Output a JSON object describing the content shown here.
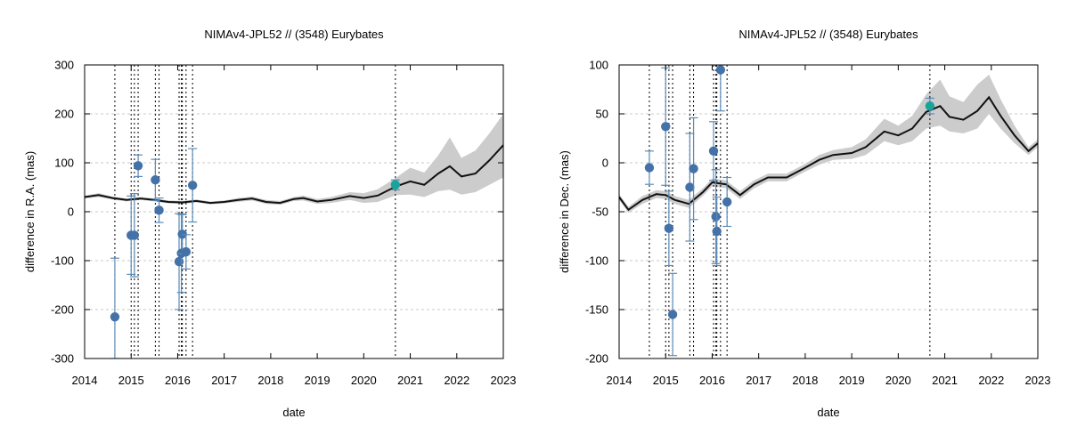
{
  "chart_data": [
    {
      "type": "line",
      "title": "NIMAv4-JPL52 // (3548) Eurybates",
      "xlabel": "date",
      "ylabel": "difference in R.A. (mas)",
      "xlim": [
        2014,
        2023
      ],
      "ylim": [
        -300,
        300
      ],
      "xticks": [
        2014,
        2015,
        2016,
        2017,
        2018,
        2019,
        2020,
        2021,
        2022,
        2023
      ],
      "yticks": [
        -300,
        -200,
        -100,
        0,
        100,
        200,
        300
      ],
      "grid": true,
      "ephemeris": {
        "x": [
          2014.0,
          2014.3,
          2014.6,
          2014.9,
          2015.2,
          2015.5,
          2015.8,
          2016.1,
          2016.4,
          2016.7,
          2017.0,
          2017.3,
          2017.6,
          2017.9,
          2018.2,
          2018.5,
          2018.7,
          2019.0,
          2019.3,
          2019.7,
          2020.0,
          2020.3,
          2020.7,
          2021.0,
          2021.3,
          2021.6,
          2021.85,
          2022.1,
          2022.4,
          2022.7,
          2023.0
        ],
        "y": [
          30,
          34,
          28,
          24,
          27,
          24,
          20,
          19,
          22,
          18,
          20,
          24,
          27,
          20,
          18,
          26,
          28,
          21,
          24,
          32,
          28,
          33,
          52,
          62,
          55,
          78,
          93,
          72,
          78,
          105,
          136
        ],
        "upper": [
          33,
          38,
          31,
          27,
          30,
          27,
          23,
          22,
          25,
          21,
          23,
          28,
          31,
          24,
          22,
          30,
          33,
          26,
          30,
          40,
          38,
          46,
          70,
          90,
          80,
          115,
          152,
          110,
          125,
          160,
          200
        ],
        "lower": [
          27,
          30,
          25,
          21,
          24,
          21,
          17,
          16,
          19,
          15,
          17,
          20,
          23,
          16,
          14,
          22,
          23,
          16,
          18,
          24,
          18,
          20,
          34,
          35,
          30,
          42,
          45,
          35,
          40,
          55,
          70
        ]
      },
      "observations": [
        {
          "x": 2014.65,
          "y": -215,
          "err": 120,
          "color": "#4472a8"
        },
        {
          "x": 2015.0,
          "y": -48,
          "err": 80,
          "color": "#4472a8"
        },
        {
          "x": 2015.07,
          "y": -48,
          "err": 85,
          "color": "#4472a8"
        },
        {
          "x": 2015.15,
          "y": 94,
          "err": 22,
          "color": "#4472a8"
        },
        {
          "x": 2015.52,
          "y": 65,
          "err": 42,
          "color": "#4472a8"
        },
        {
          "x": 2015.6,
          "y": 3,
          "err": 25,
          "color": "#4472a8"
        },
        {
          "x": 2016.03,
          "y": -102,
          "err": 98,
          "color": "#4472a8"
        },
        {
          "x": 2016.08,
          "y": -85,
          "err": 80,
          "color": "#4472a8"
        },
        {
          "x": 2016.1,
          "y": -46,
          "err": 40,
          "color": "#4472a8"
        },
        {
          "x": 2016.18,
          "y": -82,
          "err": 35,
          "color": "#4472a8"
        },
        {
          "x": 2016.32,
          "y": 54,
          "err": 75,
          "color": "#4472a8"
        },
        {
          "x": 2020.68,
          "y": 55,
          "err": 10,
          "color": "#1aa39a"
        }
      ]
    },
    {
      "type": "line",
      "title": "NIMAv4-JPL52 // (3548) Eurybates",
      "xlabel": "date",
      "ylabel": "difference in Dec. (mas)",
      "xlim": [
        2014,
        2023
      ],
      "ylim": [
        -200,
        100
      ],
      "xticks": [
        2014,
        2015,
        2016,
        2017,
        2018,
        2019,
        2020,
        2021,
        2022,
        2023
      ],
      "yticks": [
        -200,
        -150,
        -100,
        -50,
        0,
        50,
        100
      ],
      "grid": true,
      "ephemeris": {
        "x": [
          2014.0,
          2014.2,
          2014.5,
          2014.8,
          2015.0,
          2015.2,
          2015.5,
          2015.8,
          2016.0,
          2016.3,
          2016.6,
          2016.9,
          2017.2,
          2017.6,
          2018.0,
          2018.3,
          2018.6,
          2019.0,
          2019.3,
          2019.7,
          2020.0,
          2020.3,
          2020.6,
          2020.9,
          2021.1,
          2021.4,
          2021.7,
          2021.95,
          2022.2,
          2022.5,
          2022.8,
          2023.0
        ],
        "y": [
          -35,
          -48,
          -38,
          -32,
          -33,
          -38,
          -42,
          -30,
          -20,
          -22,
          -33,
          -22,
          -15,
          -15,
          -5,
          3,
          8,
          10,
          16,
          32,
          28,
          35,
          52,
          58,
          47,
          44,
          53,
          67,
          48,
          28,
          12,
          20
        ],
        "upper": [
          -32,
          -45,
          -34,
          -28,
          -29,
          -34,
          -38,
          -26,
          -16,
          -18,
          -29,
          -18,
          -11,
          -11,
          -1,
          8,
          13,
          16,
          24,
          45,
          38,
          48,
          70,
          85,
          68,
          62,
          80,
          90,
          65,
          38,
          16,
          24
        ],
        "lower": [
          -38,
          -51,
          -42,
          -36,
          -37,
          -42,
          -46,
          -34,
          -24,
          -26,
          -37,
          -26,
          -19,
          -19,
          -9,
          -2,
          3,
          4,
          8,
          22,
          18,
          22,
          35,
          38,
          32,
          30,
          35,
          50,
          35,
          20,
          8,
          16
        ]
      },
      "observations": [
        {
          "x": 2014.65,
          "y": -5,
          "err": 17,
          "color": "#4472a8"
        },
        {
          "x": 2015.0,
          "y": 37,
          "err": 60,
          "color": "#4472a8"
        },
        {
          "x": 2015.07,
          "y": -67,
          "err": 38,
          "color": "#4472a8"
        },
        {
          "x": 2015.15,
          "y": -155,
          "err": 42,
          "color": "#4472a8"
        },
        {
          "x": 2015.52,
          "y": -25,
          "err": 55,
          "color": "#4472a8"
        },
        {
          "x": 2015.6,
          "y": -6,
          "err": 52,
          "color": "#4472a8"
        },
        {
          "x": 2016.03,
          "y": 12,
          "err": 30,
          "color": "#4472a8"
        },
        {
          "x": 2016.08,
          "y": -55,
          "err": 48,
          "color": "#4472a8"
        },
        {
          "x": 2016.1,
          "y": -70,
          "err": 35,
          "color": "#4472a8"
        },
        {
          "x": 2016.18,
          "y": 95,
          "err": 42,
          "color": "#4472a8"
        },
        {
          "x": 2016.32,
          "y": -40,
          "err": 25,
          "color": "#4472a8"
        },
        {
          "x": 2020.68,
          "y": 58,
          "err": 8,
          "color": "#1aa39a"
        }
      ]
    }
  ]
}
